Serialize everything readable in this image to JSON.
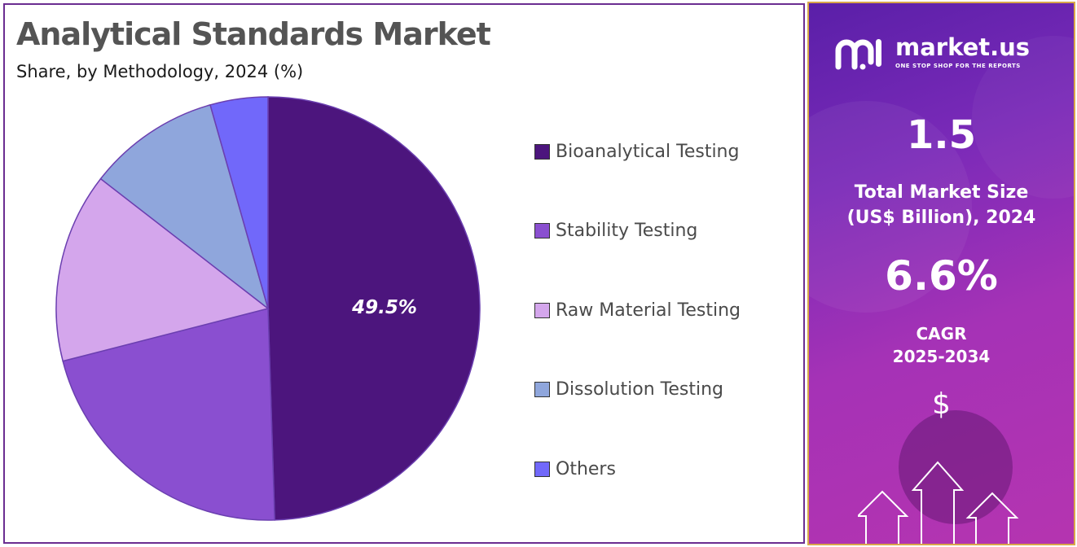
{
  "header": {
    "title": "Analytical Standards Market",
    "subtitle": "Share, by Methodology, 2024 (%)"
  },
  "chart_data": {
    "type": "pie",
    "categories": [
      "Bioanalytical Testing",
      "Stability Testing",
      "Raw Material Testing",
      "Dissolution Testing",
      "Others"
    ],
    "values": [
      49.5,
      21.5,
      14.5,
      10.1,
      4.4
    ],
    "colors": [
      "#4c157d",
      "#8a4fd0",
      "#d4a6ec",
      "#8fa6dc",
      "#7168fa"
    ],
    "data_labels": [
      "49.5%"
    ],
    "legend_position": "right"
  },
  "legend": {
    "items": [
      {
        "label": "Bioanalytical Testing",
        "color": "#4c157d"
      },
      {
        "label": "Stability Testing",
        "color": "#8a4fd0"
      },
      {
        "label": "Raw Material Testing",
        "color": "#d4a6ec"
      },
      {
        "label": "Dissolution Testing",
        "color": "#8fa6dc"
      },
      {
        "label": "Others",
        "color": "#7168fa"
      }
    ]
  },
  "sidebar": {
    "brand_name": "market.us",
    "brand_tagline": "ONE STOP SHOP FOR THE REPORTS",
    "market_size_value": "1.5",
    "market_size_label_line1": "Total Market Size",
    "market_size_label_line2": "(US$ Billion), 2024",
    "cagr_value": "6.6%",
    "cagr_label_line1": "CAGR",
    "cagr_label_line2": "2025-2034",
    "icon": "dollar-icon",
    "dollar_symbol": "$"
  }
}
